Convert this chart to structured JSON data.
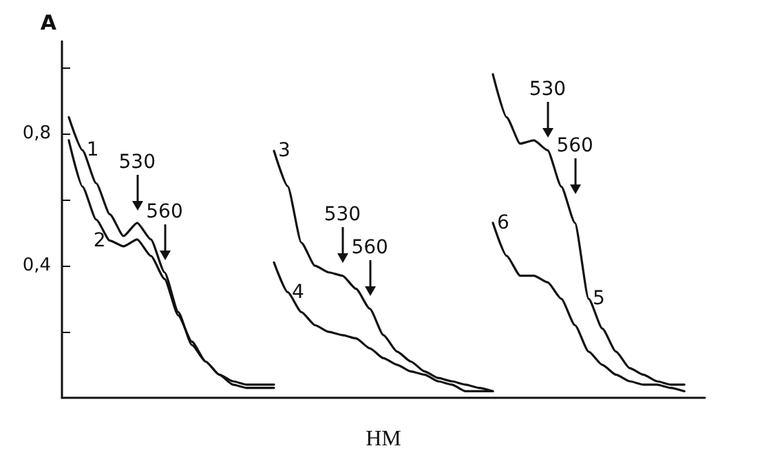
{
  "chart_data": {
    "type": "line",
    "xlabel": "НМ",
    "ylabel": "A",
    "categories": [
      null,
      null,
      null,
      null,
      null,
      null,
      null,
      null,
      null,
      null,
      null,
      null,
      null,
      null,
      null,
      null,
      null,
      null,
      null,
      null,
      null,
      null,
      null,
      null,
      null,
      null,
      null,
      null,
      null,
      null,
      null,
      null,
      null,
      null,
      null,
      null,
      null,
      null,
      null,
      null,
      null,
      null,
      null,
      null,
      null,
      null,
      null
    ],
    "ylim": [
      0,
      1.08
    ],
    "yticks": [
      {
        "value": 0.2,
        "label": null
      },
      {
        "value": 0.4,
        "label": "0,4"
      },
      {
        "value": 0.6,
        "label": null
      },
      {
        "value": 0.8,
        "label": "0,8"
      },
      {
        "value": 1.0,
        "label": null
      }
    ],
    "grid": false,
    "legend": false,
    "marker": "none",
    "line_style": "solid",
    "series": [
      {
        "name": "1",
        "color": "#111111",
        "values": [
          0.85,
          0.75,
          0.65,
          0.556,
          0.49,
          0.53,
          0.48,
          0.38,
          0.26,
          0.16,
          0.11,
          0.07,
          0.05,
          0.04,
          0.04,
          0.04,
          null,
          null,
          null,
          null,
          null,
          null,
          null,
          null,
          null,
          null,
          null,
          null,
          null,
          null,
          null,
          null,
          null,
          null,
          null,
          null,
          null,
          null,
          null,
          null,
          null,
          null,
          null,
          null,
          null,
          null,
          null
        ]
      },
      {
        "name": "2",
        "color": "#111111",
        "values": [
          0.78,
          0.64,
          0.54,
          0.476,
          0.459,
          0.48,
          0.43,
          0.36,
          0.25,
          0.17,
          0.11,
          0.07,
          0.04,
          0.03,
          0.03,
          0.03,
          null,
          null,
          null,
          null,
          null,
          null,
          null,
          null,
          null,
          null,
          null,
          null,
          null,
          null,
          null,
          null,
          null,
          null,
          null,
          null,
          null,
          null,
          null,
          null,
          null,
          null,
          null,
          null,
          null,
          null,
          null
        ]
      },
      {
        "name": "3",
        "color": "#111111",
        "values": [
          null,
          null,
          null,
          null,
          null,
          null,
          null,
          null,
          null,
          null,
          null,
          null,
          null,
          null,
          null,
          0.748,
          0.641,
          0.47,
          0.4,
          0.38,
          0.37,
          0.33,
          0.27,
          0.19,
          0.14,
          0.11,
          0.08,
          0.06,
          0.05,
          0.04,
          0.03,
          0.02,
          null,
          null,
          null,
          null,
          null,
          null,
          null,
          null,
          null,
          null,
          null,
          null,
          null,
          null,
          null
        ]
      },
      {
        "name": "4",
        "color": "#111111",
        "values": [
          null,
          null,
          null,
          null,
          null,
          null,
          null,
          null,
          null,
          null,
          null,
          null,
          null,
          null,
          null,
          0.41,
          0.32,
          0.26,
          0.22,
          0.2,
          0.19,
          0.18,
          0.15,
          0.12,
          0.1,
          0.08,
          0.07,
          0.05,
          0.04,
          0.02,
          0.02,
          0.02,
          null,
          null,
          null,
          null,
          null,
          null,
          null,
          null,
          null,
          null,
          null,
          null,
          null,
          null,
          null
        ]
      },
      {
        "name": "5",
        "color": "#111111",
        "values": [
          null,
          null,
          null,
          null,
          null,
          null,
          null,
          null,
          null,
          null,
          null,
          null,
          null,
          null,
          null,
          null,
          null,
          null,
          null,
          null,
          null,
          null,
          null,
          null,
          null,
          null,
          null,
          null,
          null,
          null,
          null,
          0.98,
          0.85,
          0.77,
          0.78,
          0.75,
          0.64,
          0.53,
          0.3,
          0.21,
          0.14,
          0.09,
          0.07,
          0.05,
          0.04,
          0.04,
          null
        ]
      },
      {
        "name": "6",
        "color": "#111111",
        "values": [
          null,
          null,
          null,
          null,
          null,
          null,
          null,
          null,
          null,
          null,
          null,
          null,
          null,
          null,
          null,
          null,
          null,
          null,
          null,
          null,
          null,
          null,
          null,
          null,
          null,
          null,
          null,
          null,
          null,
          null,
          null,
          0.53,
          0.43,
          0.37,
          0.37,
          0.35,
          0.3,
          0.22,
          0.14,
          0.1,
          0.07,
          0.05,
          0.04,
          0.04,
          0.03,
          0.02,
          null
        ]
      }
    ],
    "annotations": [
      "530",
      "560",
      "530",
      "560",
      "530",
      "560"
    ]
  }
}
